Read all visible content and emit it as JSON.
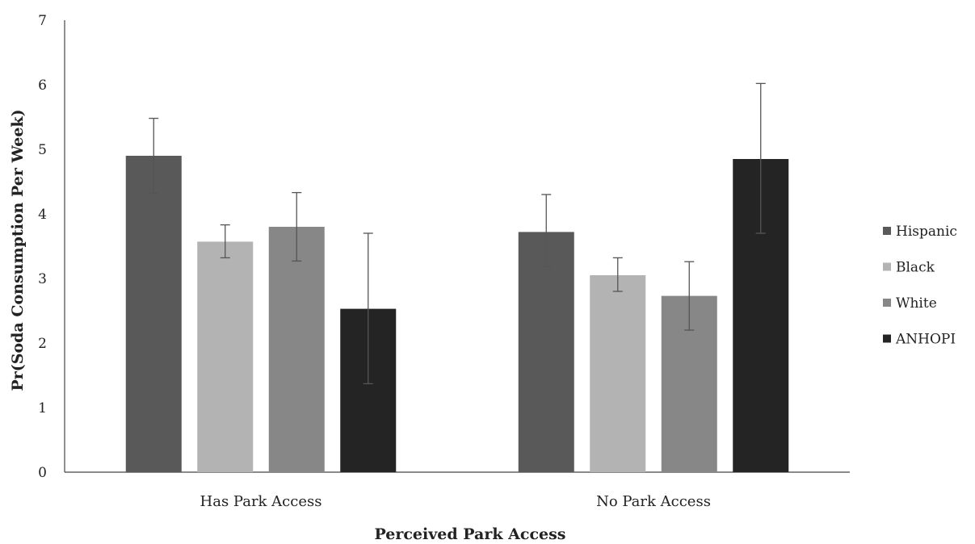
{
  "chart_data": {
    "type": "bar",
    "title": "",
    "xlabel": "Perceived Park Access",
    "ylabel": "Pr(Soda Consumption Per Week)",
    "categories": [
      "Has Park Access",
      "No Park Access"
    ],
    "ylim": [
      0,
      7
    ],
    "yticks": [
      0,
      1,
      2,
      3,
      4,
      5,
      6,
      7
    ],
    "grid": false,
    "legend_position": "right",
    "series": [
      {
        "name": "Hispanic",
        "color": "#595959",
        "values": [
          4.9,
          3.72
        ],
        "err_low": [
          4.32,
          3.18
        ],
        "err_high": [
          5.48,
          4.3
        ]
      },
      {
        "name": "Black",
        "color": "#b3b3b3",
        "values": [
          3.57,
          3.05
        ],
        "err_low": [
          3.32,
          2.8
        ],
        "err_high": [
          3.83,
          3.32
        ]
      },
      {
        "name": "White",
        "color": "#878787",
        "values": [
          3.8,
          2.73
        ],
        "err_low": [
          3.27,
          2.2
        ],
        "err_high": [
          4.33,
          3.26
        ]
      },
      {
        "name": "ANHOPI",
        "color": "#242424",
        "values": [
          2.53,
          4.85
        ],
        "err_low": [
          1.37,
          3.7
        ],
        "err_high": [
          3.7,
          6.02
        ]
      }
    ]
  }
}
